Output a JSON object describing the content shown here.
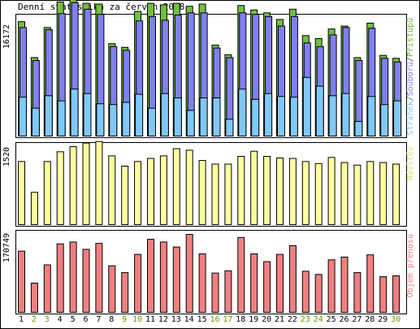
{
  "chart_data": {
    "type": "bar",
    "title": "Denní statistika za červen 2018",
    "categories": [
      "1",
      "2",
      "3",
      "4",
      "5",
      "6",
      "7",
      "8",
      "9",
      "10",
      "11",
      "12",
      "13",
      "14",
      "15",
      "16",
      "17",
      "18",
      "19",
      "20",
      "21",
      "22",
      "23",
      "24",
      "25",
      "26",
      "27",
      "28",
      "29",
      "30"
    ],
    "weekend_days": [
      "2",
      "3",
      "9",
      "10",
      "16",
      "17",
      "23",
      "24",
      "30"
    ],
    "panels": [
      {
        "name": "hits",
        "ytick_label": "16172",
        "ytick_value": 16172,
        "legend": [
          {
            "text": "Stránek",
            "color": "#80c8f8"
          },
          {
            "text": "/",
            "color": "#606060"
          },
          {
            "text": "Souborů",
            "color": "#8080f0"
          },
          {
            "text": "/",
            "color": "#606060"
          },
          {
            "text": "Přístupů",
            "color": "#70c040"
          }
        ],
        "series": [
          {
            "name": "Přístupů",
            "color": "#70c040",
            "values": [
              15600,
              10700,
              14800,
              18300,
              19000,
              18100,
              18000,
              12600,
              12100,
              17000,
              18100,
              17900,
              18100,
              17700,
              18000,
              12400,
              11100,
              17800,
              17200,
              16800,
              15900,
              17300,
              13700,
              13300,
              14600,
              15000,
              10700,
              15400,
              11000,
              10600
            ]
          },
          {
            "name": "Souborů",
            "color": "#8080f0",
            "values": [
              14800,
              10300,
              14500,
              16700,
              18200,
              17300,
              16600,
              12200,
              11700,
              15700,
              16300,
              15800,
              16500,
              16800,
              16800,
              12000,
              10700,
              16800,
              16600,
              16300,
              15000,
              16300,
              12700,
              12200,
              13800,
              14800,
              10300,
              14700,
              10600,
              10100
            ]
          },
          {
            "name": "Stránek",
            "color": "#80c8f8",
            "values": [
              5300,
              3800,
              5500,
              4800,
              6400,
              5800,
              4400,
              4300,
              4600,
              5700,
              3800,
              5800,
              5200,
              3500,
              5200,
              5200,
              2300,
              6400,
              5000,
              5800,
              5400,
              5300,
              8000,
              6800,
              5500,
              5800,
              2000,
              5400,
              4300,
              4800
            ]
          }
        ]
      },
      {
        "name": "visits",
        "ytick_label": "1520",
        "ytick_value": 1520,
        "legend": [
          {
            "text": "Návštěv",
            "color": "#e8e870"
          }
        ],
        "series": [
          {
            "name": "Návštěv",
            "color": "#ffffa0",
            "values": [
              1230,
              630,
              1230,
              1420,
              1520,
              1590,
              1620,
              1340,
              1140,
              1230,
              1290,
              1340,
              1480,
              1450,
              1250,
              1180,
              1180,
              1330,
              1430,
              1330,
              1300,
              1290,
              1230,
              1190,
              1310,
              1210,
              1160,
              1230,
              1210,
              1180
            ]
          }
        ]
      },
      {
        "name": "kbytes",
        "ytick_label": "170749",
        "ytick_value": 170749,
        "legend": [
          {
            "text": "Objem přenosu",
            "color": "#f08080"
          }
        ],
        "series": [
          {
            "name": "Objem přenosu",
            "color": "#f08080",
            "values": [
              134000,
              64000,
              104000,
              150000,
              154000,
              138000,
              151000,
              102000,
              87000,
              127000,
              160000,
              154000,
              143000,
              170700,
              128000,
              86000,
              91000,
              164000,
              128000,
              111000,
              127000,
              146000,
              90000,
              83000,
              115000,
              121000,
              87000,
              126000,
              78000,
              80000
            ]
          }
        ]
      }
    ]
  }
}
